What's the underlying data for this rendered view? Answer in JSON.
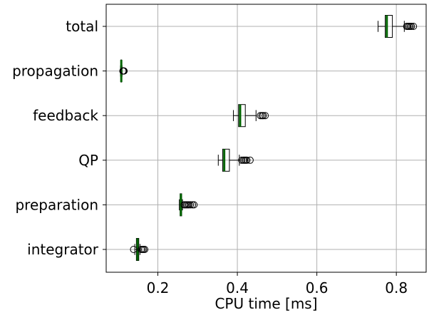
{
  "chart_data": {
    "type": "boxplot",
    "orientation": "horizontal",
    "title": "",
    "xlabel": "CPU time [ms]",
    "ylabel": "",
    "xlim": [
      0.07,
      0.875
    ],
    "xticks": [
      0.2,
      0.4,
      0.6,
      0.8
    ],
    "xtick_labels": [
      "0.2",
      "0.4",
      "0.6",
      "0.8"
    ],
    "grid": true,
    "legend": "none",
    "colors": {
      "box": "#000000",
      "median": "#006400",
      "grid": "#b0b0b0",
      "background": "#ffffff"
    },
    "categories": [
      "total",
      "propagation",
      "feedback",
      "QP",
      "preparation",
      "integrator"
    ],
    "boxes": [
      {
        "label": "total",
        "whislo": 0.754,
        "q1": 0.772,
        "med": 0.776,
        "q3": 0.79,
        "whishi": 0.82,
        "fliers": [
          0.826,
          0.829,
          0.832,
          0.835,
          0.838,
          0.843
        ]
      },
      {
        "label": "propagation",
        "whislo": 0.106,
        "q1": 0.107,
        "med": 0.108,
        "q3": 0.109,
        "whishi": 0.11,
        "fliers": [
          0.112,
          0.113,
          0.114,
          0.115
        ]
      },
      {
        "label": "feedback",
        "whislo": 0.39,
        "q1": 0.403,
        "med": 0.407,
        "q3": 0.42,
        "whishi": 0.447,
        "fliers": [
          0.458,
          0.462,
          0.465,
          0.47
        ]
      },
      {
        "label": "QP",
        "whislo": 0.352,
        "q1": 0.363,
        "med": 0.367,
        "q3": 0.38,
        "whishi": 0.405,
        "fliers": [
          0.411,
          0.415,
          0.418,
          0.421,
          0.424,
          0.432
        ]
      },
      {
        "label": "preparation",
        "whislo": 0.254,
        "q1": 0.256,
        "med": 0.258,
        "q3": 0.26,
        "whishi": 0.262,
        "fliers": [
          0.266,
          0.269,
          0.272,
          0.275,
          0.278,
          0.282,
          0.287,
          0.291
        ]
      },
      {
        "label": "integrator",
        "whislo": 0.142,
        "q1": 0.146,
        "med": 0.149,
        "q3": 0.152,
        "whishi": 0.155,
        "fliers": [
          0.139,
          0.158,
          0.161,
          0.164,
          0.167
        ]
      }
    ]
  }
}
